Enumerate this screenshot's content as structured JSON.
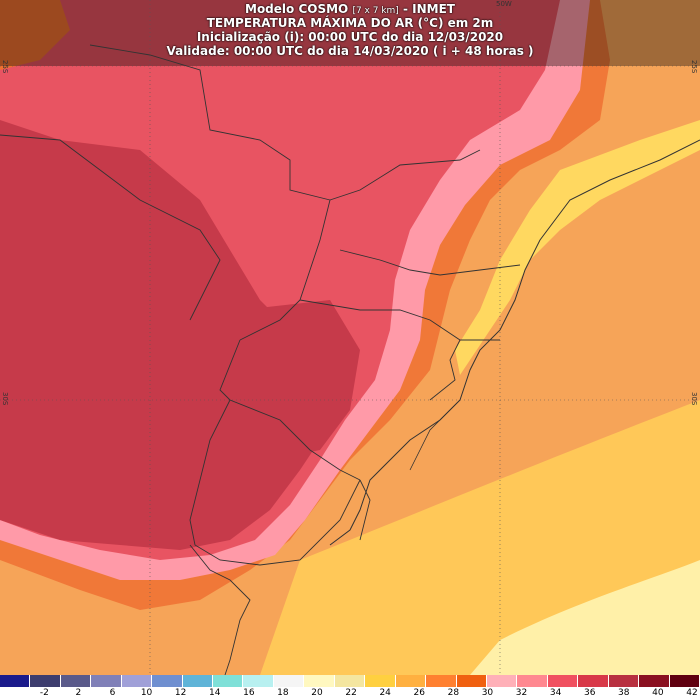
{
  "header": {
    "model": "Modelo COSMO",
    "resolution": "[7 x 7 km]",
    "source": "- INMET",
    "title": "TEMPERATURA MÁXIMA DO AR (°C) em 2m",
    "init": "Inicialização (i): 00:00 UTC do dia 12/03/2020",
    "valid": "Validade: 00:00 UTC do dia 14/03/2020 ( i + 48 horas )"
  },
  "grid_labels": {
    "lat_top": "25S",
    "lat_mid": "30S",
    "lon_top": "50W"
  },
  "legend": {
    "unit": "°C",
    "ticks": [
      "-2",
      "2",
      "6",
      "10",
      "12",
      "14",
      "16",
      "18",
      "20",
      "22",
      "24",
      "26",
      "28",
      "30",
      "32",
      "34",
      "36",
      "38",
      "40",
      "42"
    ],
    "colors": [
      "#1b1b8c",
      "#3d3d6e",
      "#5a5a8a",
      "#8080b8",
      "#a0a0d8",
      "#6f8fd0",
      "#5fb4d8",
      "#7fe0d8",
      "#b8f0f0",
      "#f5f5f5",
      "#fff8c0",
      "#f4e6a0",
      "#ffd040",
      "#ffb040",
      "#ff8030",
      "#f06010",
      "#ffb0b8",
      "#ff8890",
      "#f05060",
      "#d83848",
      "#b83040",
      "#8a1020",
      "#600010"
    ]
  },
  "colors": {
    "hot_interior": "#c83848",
    "warm_interior": "#e85060",
    "pink": "#ff9aa8",
    "orange": "#f08030",
    "ocean": "#f4a050",
    "coast_yellow": "#ffd860",
    "boundary": "#333333"
  }
}
